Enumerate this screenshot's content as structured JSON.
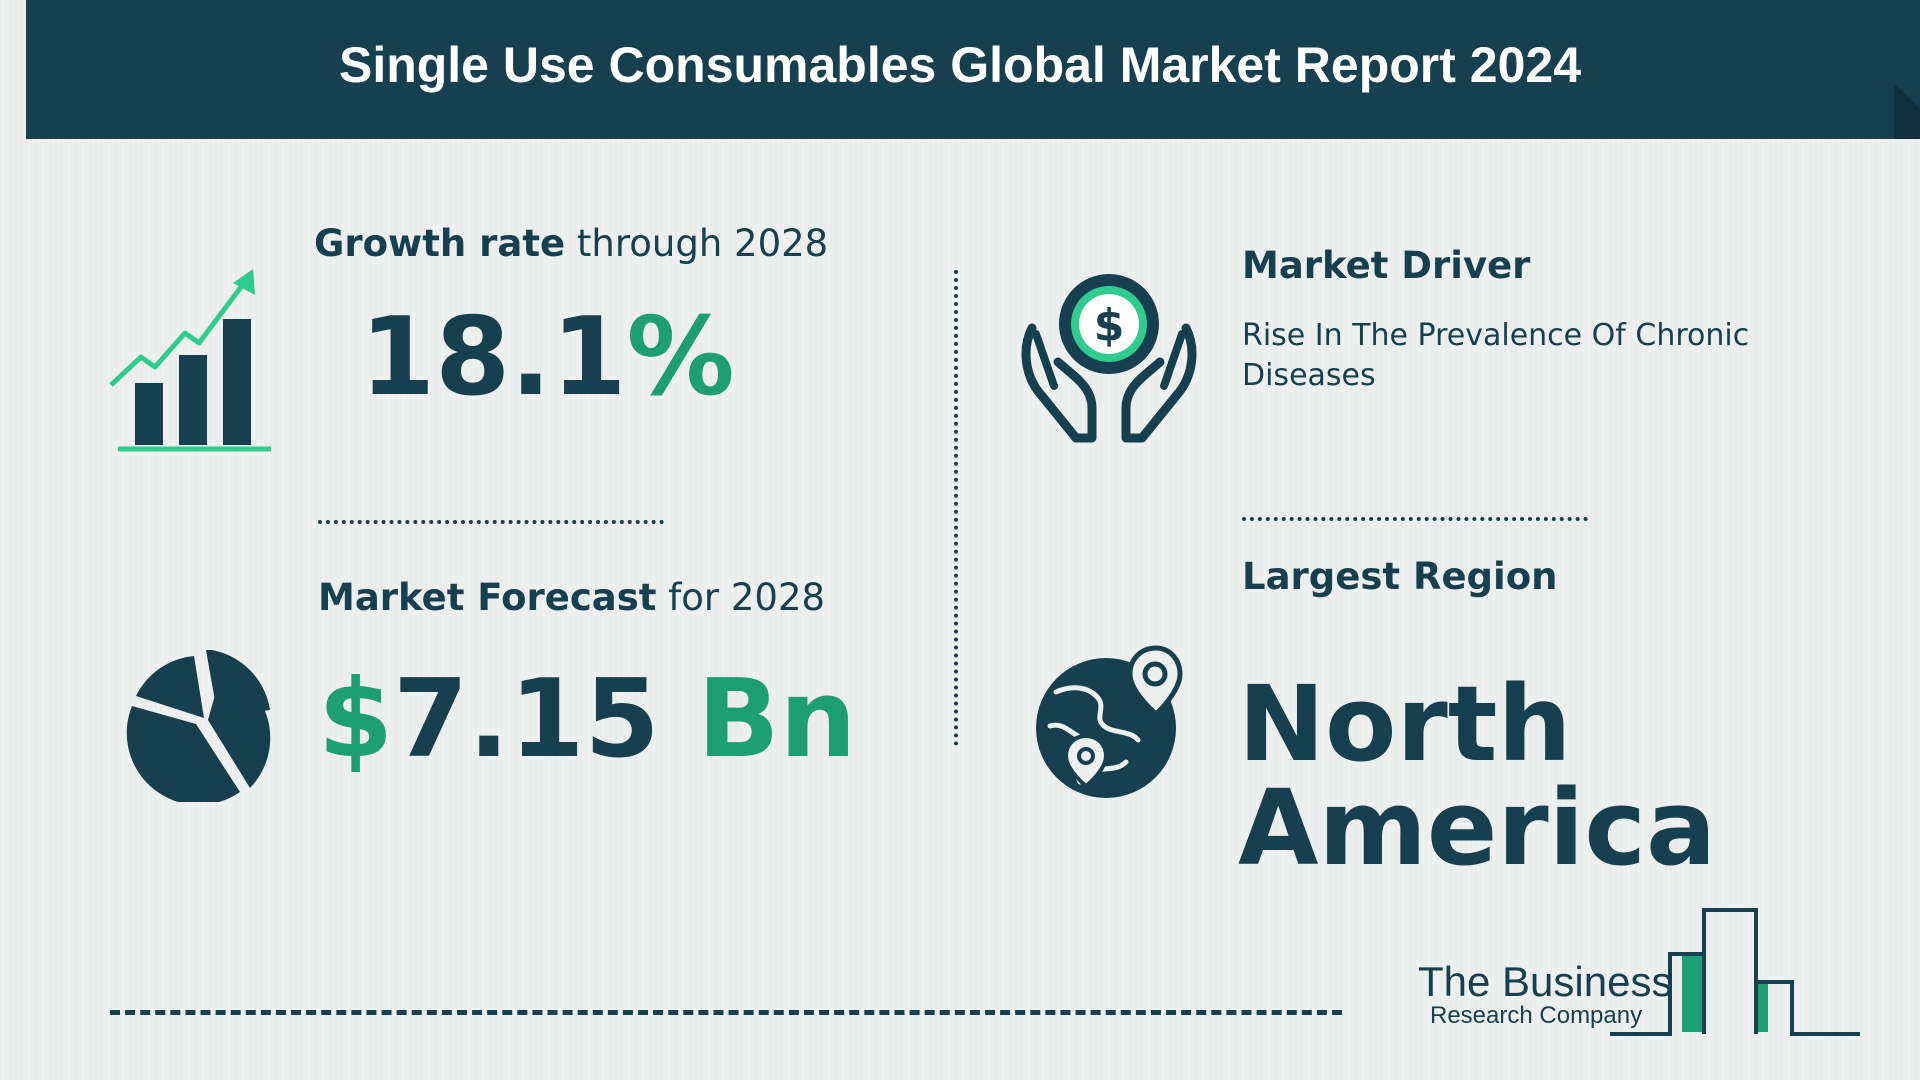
{
  "header": {
    "title": "Single Use Consumables Global Market Report 2024"
  },
  "growth": {
    "label_bold": "Growth rate",
    "label_rest": " through 2028",
    "value_number": "18.1",
    "value_percent": "%",
    "icon": "growth-bar-chart-icon"
  },
  "forecast": {
    "label_bold": "Market Forecast",
    "label_rest": " for 2028",
    "value_currency": "$",
    "value_number": "7.15",
    "value_unit": " Bn",
    "icon": "pie-chart-icon"
  },
  "driver": {
    "title": "Market Driver",
    "text": "Rise In The Prevalence Of Chronic Diseases",
    "icon": "hands-holding-dollar-icon"
  },
  "region": {
    "title": "Largest Region",
    "line1": "North",
    "line2": "America",
    "icon": "globe-location-pin-icon"
  },
  "logo": {
    "line1": "The Business",
    "line2": "Research Company"
  },
  "colors": {
    "navy": "#16404f",
    "green": "#1e9e73",
    "light_green": "#2ecc8f",
    "background": "#eef0ef"
  }
}
